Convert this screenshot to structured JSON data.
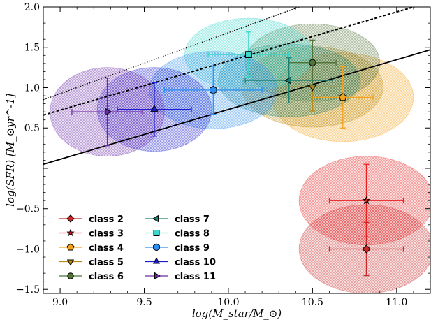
{
  "chart_data": {
    "type": "scatter",
    "xlabel": "log(M_star/M_⊙)",
    "ylabel": "log(SFR) [M_⊙yr^-1]",
    "xlim": [
      8.9,
      11.2
    ],
    "ylim": [
      -1.55,
      2.0
    ],
    "xticks": [
      9.0,
      9.5,
      10.0,
      10.5,
      11.0
    ],
    "xtick_labels": [
      "9.0",
      "9.5",
      "10.0",
      "10.5",
      "11.0"
    ],
    "yticks": [
      -1.5,
      -1.0,
      -0.5,
      0.0,
      0.5,
      1.0,
      1.5,
      2.0
    ],
    "ytick_labels": [
      "−1.5",
      "−1.0",
      "−0.5",
      "",
      "0.5",
      "1.0",
      "1.5",
      "2.0"
    ],
    "legend_position": "lower-left",
    "lines": [
      {
        "style": "solid",
        "x": [
          8.9,
          11.2
        ],
        "y": [
          0.05,
          1.47
        ]
      },
      {
        "style": "dashed",
        "x": [
          8.9,
          11.2
        ],
        "y": [
          0.66,
          2.06
        ]
      },
      {
        "style": "dotted",
        "x": [
          8.9,
          10.5
        ],
        "y": [
          0.85,
          2.06
        ]
      }
    ],
    "series": [
      {
        "name": "class 2",
        "color": "#c82828",
        "marker": "diamond",
        "x": 10.82,
        "y": -1.0,
        "xerr": 0.22,
        "yerr": 0.33,
        "ex": 0.4,
        "ey": 0.55
      },
      {
        "name": "class 3",
        "color": "#e82020",
        "marker": "star",
        "x": 10.82,
        "y": -0.4,
        "xerr": 0.22,
        "yerr": 0.45,
        "ex": 0.4,
        "ey": 0.55
      },
      {
        "name": "class 4",
        "color": "#f4a21c",
        "marker": "pentagon",
        "x": 10.68,
        "y": 0.88,
        "xerr": 0.18,
        "yerr": 0.38,
        "ex": 0.42,
        "ey": 0.55
      },
      {
        "name": "class 5",
        "color": "#b88c10",
        "marker": "triangle-down",
        "x": 10.5,
        "y": 1.01,
        "xerr": 0.16,
        "yerr": 0.3,
        "ex": 0.42,
        "ey": 0.5
      },
      {
        "name": "class 6",
        "color": "#52733a",
        "marker": "circle",
        "x": 10.5,
        "y": 1.31,
        "xerr": 0.14,
        "yerr": 0.28,
        "ex": 0.4,
        "ey": 0.48
      },
      {
        "name": "class 7",
        "color": "#1c8070",
        "marker": "triangle-left",
        "x": 10.36,
        "y": 1.09,
        "xerr": 0.26,
        "yerr": 0.28,
        "ex": 0.42,
        "ey": 0.45
      },
      {
        "name": "class 8",
        "color": "#3cd6cc",
        "marker": "square",
        "x": 10.12,
        "y": 1.41,
        "xerr": 0.24,
        "yerr": 0.28,
        "ex": 0.38,
        "ey": 0.45
      },
      {
        "name": "class 9",
        "color": "#2d8ef0",
        "marker": "hexagon",
        "x": 9.91,
        "y": 0.97,
        "xerr": 0.29,
        "yerr": 0.3,
        "ex": 0.38,
        "ey": 0.48
      },
      {
        "name": "class 10",
        "color": "#1c1cd4",
        "marker": "triangle-up",
        "x": 9.56,
        "y": 0.73,
        "xerr": 0.22,
        "yerr": 0.33,
        "ex": 0.34,
        "ey": 0.52
      },
      {
        "name": "class 11",
        "color": "#6a2aa8",
        "marker": "triangle-right",
        "x": 9.28,
        "y": 0.7,
        "xerr": 0.21,
        "yerr": 0.42,
        "ex": 0.34,
        "ey": 0.55
      }
    ]
  }
}
